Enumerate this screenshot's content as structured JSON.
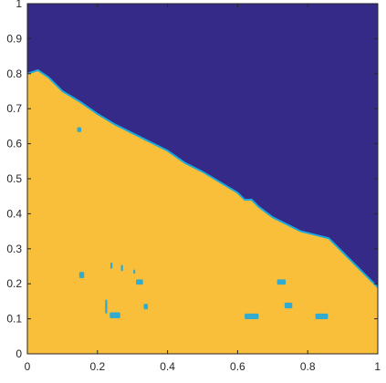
{
  "chart_data": {
    "type": "heatmap",
    "title": "",
    "xlabel": "",
    "ylabel": "",
    "xlim": [
      0,
      1
    ],
    "ylim": [
      0,
      1
    ],
    "grid": false,
    "x_ticks": [
      "0",
      "0.2",
      "0.4",
      "0.6",
      "0.8",
      "1"
    ],
    "y_ticks": [
      "0",
      "0.1",
      "0.2",
      "0.3",
      "0.4",
      "0.5",
      "0.6",
      "0.7",
      "0.8",
      "0.9",
      "1"
    ],
    "colors": {
      "high_region": "#f9be3a",
      "low_region": "#352a87",
      "boundary": "#1ca9df"
    },
    "boundary": {
      "x": [
        0.0,
        0.03,
        0.06,
        0.1,
        0.15,
        0.2,
        0.25,
        0.3,
        0.35,
        0.4,
        0.45,
        0.5,
        0.55,
        0.6,
        0.62,
        0.64,
        0.66,
        0.7,
        0.74,
        0.78,
        0.82,
        0.86,
        0.88,
        0.9,
        0.92,
        0.94,
        0.96,
        0.98,
        1.0
      ],
      "y": [
        0.8,
        0.81,
        0.79,
        0.75,
        0.72,
        0.685,
        0.655,
        0.63,
        0.605,
        0.58,
        0.545,
        0.52,
        0.49,
        0.46,
        0.44,
        0.44,
        0.42,
        0.39,
        0.37,
        0.35,
        0.34,
        0.33,
        0.31,
        0.29,
        0.27,
        0.25,
        0.23,
        0.21,
        0.19
      ]
    },
    "spots": [
      {
        "x": 0.148,
        "y": 0.64,
        "w": 0.012,
        "h": 0.014
      },
      {
        "x": 0.155,
        "y": 0.225,
        "w": 0.014,
        "h": 0.018
      },
      {
        "x": 0.24,
        "y": 0.252,
        "w": 0.006,
        "h": 0.018
      },
      {
        "x": 0.27,
        "y": 0.245,
        "w": 0.006,
        "h": 0.018
      },
      {
        "x": 0.32,
        "y": 0.205,
        "w": 0.02,
        "h": 0.015
      },
      {
        "x": 0.305,
        "y": 0.235,
        "w": 0.006,
        "h": 0.012
      },
      {
        "x": 0.25,
        "y": 0.11,
        "w": 0.03,
        "h": 0.017
      },
      {
        "x": 0.225,
        "y": 0.135,
        "w": 0.006,
        "h": 0.04
      },
      {
        "x": 0.338,
        "y": 0.135,
        "w": 0.012,
        "h": 0.016
      },
      {
        "x": 0.64,
        "y": 0.107,
        "w": 0.04,
        "h": 0.016
      },
      {
        "x": 0.725,
        "y": 0.205,
        "w": 0.025,
        "h": 0.015
      },
      {
        "x": 0.745,
        "y": 0.138,
        "w": 0.022,
        "h": 0.016
      },
      {
        "x": 0.84,
        "y": 0.107,
        "w": 0.036,
        "h": 0.016
      }
    ]
  }
}
